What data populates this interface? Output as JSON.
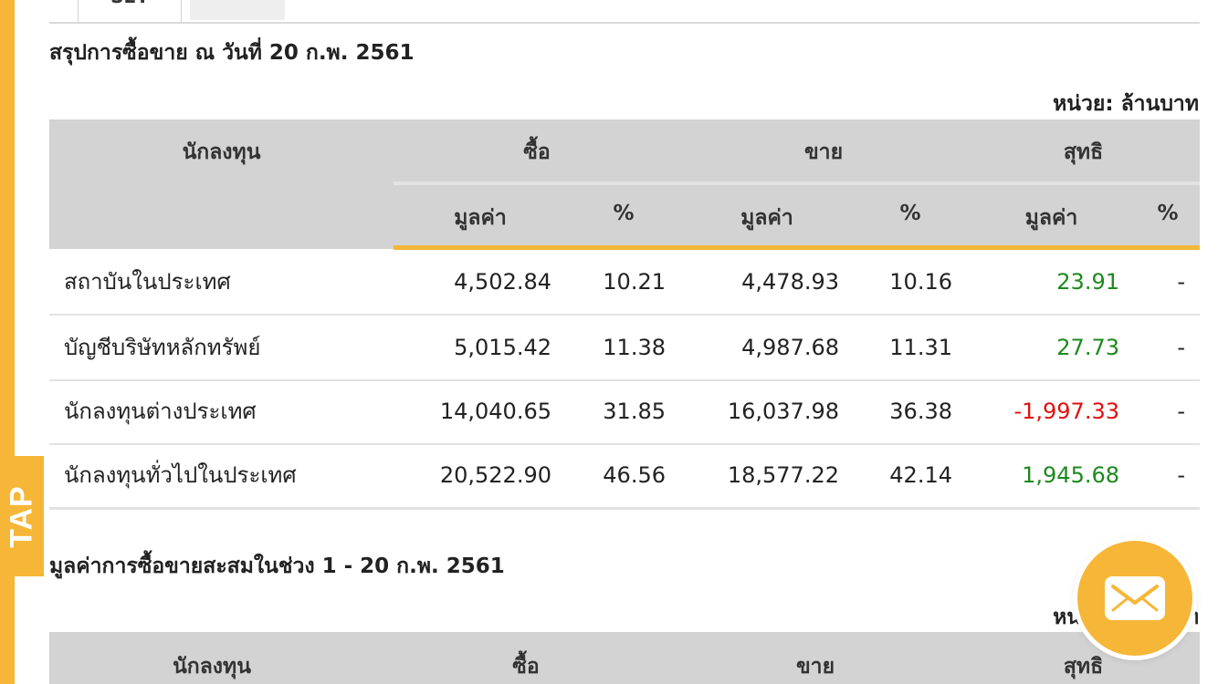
{
  "side_tab": {
    "label": "TAP"
  },
  "tabs": [
    {
      "label": "SET"
    },
    {
      "label": ""
    }
  ],
  "section1": {
    "title": "สรุปการซื้อขาย ณ วันที่ 20 ก.พ. 2561",
    "unit": "หน่วย: ล้านบาท",
    "headers": {
      "investor": "นักลงทุน",
      "buy": "ซื้อ",
      "sell": "ขาย",
      "net": "สุทธิ",
      "value": "มูลค่า",
      "percent": "%"
    },
    "rows": [
      {
        "investor": "สถาบันในประเทศ",
        "buy_value": "4,502.84",
        "buy_pct": "10.21",
        "sell_value": "4,478.93",
        "sell_pct": "10.16",
        "net_value": "23.91",
        "net_pct": "-",
        "net_sign": "positive"
      },
      {
        "investor": "บัญชีบริษัทหลักทรัพย์",
        "buy_value": "5,015.42",
        "buy_pct": "11.38",
        "sell_value": "4,987.68",
        "sell_pct": "11.31",
        "net_value": "27.73",
        "net_pct": "-",
        "net_sign": "positive"
      },
      {
        "investor": "นักลงทุนต่างประเทศ",
        "buy_value": "14,040.65",
        "buy_pct": "31.85",
        "sell_value": "16,037.98",
        "sell_pct": "36.38",
        "net_value": "-1,997.33",
        "net_pct": "-",
        "net_sign": "negative"
      },
      {
        "investor": "นักลงทุนทั่วไปในประเทศ",
        "buy_value": "20,522.90",
        "buy_pct": "46.56",
        "sell_value": "18,577.22",
        "sell_pct": "42.14",
        "net_value": "1,945.68",
        "net_pct": "-",
        "net_sign": "positive"
      }
    ]
  },
  "section2": {
    "title": "มูลค่าการซื้อขายสะสมในช่วง 1 - 20 ก.พ. 2561",
    "unit": "หน่วย: ล้านบาท",
    "headers": {
      "investor": "นักลงทุน",
      "buy": "ซื้อ",
      "sell": "ขาย",
      "net": "สุทธิ"
    }
  },
  "floating": {
    "icon": "mail-icon"
  },
  "colors": {
    "accent": "#f6b637",
    "header_bg": "#d3d3d3",
    "positive": "#1c8a1c",
    "negative": "#e01010"
  }
}
